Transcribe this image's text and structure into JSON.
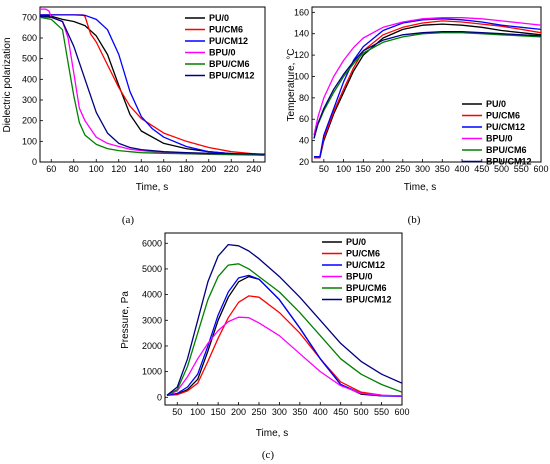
{
  "colors": {
    "PU/0": "#000000",
    "PU/CM6": "#ff0000",
    "PU/CM12": "#0000ff",
    "BPU/0": "#ff00ff",
    "BPU/CM6": "#008000",
    "BPU/CM12": "#000080"
  },
  "chart_data": [
    {
      "type": "line",
      "panel_label": "(a)",
      "xlabel": "Time, s",
      "ylabel": "Dielectric polarization",
      "xlim": [
        50,
        250
      ],
      "ylim": [
        0,
        750
      ],
      "xticks": [
        60,
        80,
        100,
        120,
        140,
        160,
        180,
        200,
        220,
        240
      ],
      "yticks": [
        0,
        100,
        200,
        300,
        400,
        500,
        600,
        700
      ],
      "legend": "top-right",
      "grid": false,
      "series": [
        {
          "name": "PU/0",
          "x": [
            50,
            60,
            70,
            80,
            90,
            100,
            110,
            120,
            130,
            140,
            160,
            180,
            200,
            220,
            250
          ],
          "y": [
            710,
            705,
            690,
            680,
            660,
            610,
            520,
            370,
            230,
            150,
            90,
            65,
            50,
            40,
            33
          ]
        },
        {
          "name": "PU/CM6",
          "x": [
            50,
            60,
            70,
            80,
            88,
            90,
            95,
            100,
            110,
            120,
            130,
            140,
            160,
            180,
            200,
            220,
            250
          ],
          "y": [
            712,
            712,
            712,
            712,
            712,
            705,
            620,
            580,
            470,
            360,
            270,
            210,
            140,
            100,
            70,
            50,
            35
          ]
        },
        {
          "name": "PU/CM12",
          "x": [
            50,
            60,
            70,
            80,
            90,
            100,
            110,
            120,
            130,
            140,
            150,
            160,
            180,
            200,
            220,
            250
          ],
          "y": [
            712,
            712,
            712,
            712,
            710,
            690,
            640,
            520,
            340,
            220,
            160,
            120,
            75,
            50,
            40,
            33
          ]
        },
        {
          "name": "BPU/0",
          "x": [
            50,
            55,
            58,
            60,
            70,
            75,
            80,
            85,
            90,
            100,
            110,
            120,
            130,
            140,
            160,
            180,
            200,
            250
          ],
          "y": [
            740,
            740,
            730,
            700,
            680,
            600,
            430,
            260,
            200,
            120,
            90,
            75,
            62,
            55,
            45,
            40,
            37,
            33
          ]
        },
        {
          "name": "BPU/CM6",
          "x": [
            50,
            60,
            70,
            75,
            80,
            85,
            90,
            100,
            110,
            120,
            130,
            140,
            160,
            180,
            200,
            250
          ],
          "y": [
            700,
            690,
            640,
            480,
            320,
            190,
            130,
            85,
            65,
            55,
            50,
            45,
            42,
            40,
            38,
            35
          ]
        },
        {
          "name": "BPU/CM12",
          "x": [
            50,
            60,
            70,
            80,
            90,
            100,
            110,
            120,
            130,
            140,
            160,
            180,
            200,
            250
          ],
          "y": [
            705,
            700,
            680,
            560,
            400,
            240,
            140,
            90,
            70,
            60,
            50,
            45,
            42,
            38
          ]
        }
      ]
    },
    {
      "type": "line",
      "panel_label": "(b)",
      "xlabel": "Time, s",
      "ylabel": "Temperature, °C",
      "xlim": [
        20,
        600
      ],
      "ylim": [
        20,
        165
      ],
      "xticks": [
        50,
        100,
        150,
        200,
        250,
        300,
        350,
        400,
        450,
        500,
        550,
        600
      ],
      "yticks": [
        20,
        40,
        60,
        80,
        100,
        120,
        140,
        160
      ],
      "legend": "bottom-right",
      "grid": false,
      "series": [
        {
          "name": "PU/0",
          "x": [
            25,
            40,
            50,
            75,
            100,
            125,
            150,
            200,
            250,
            300,
            350,
            400,
            450,
            500,
            550,
            600
          ],
          "y": [
            24,
            24,
            40,
            65,
            85,
            105,
            120,
            136,
            144,
            148,
            149,
            148,
            146,
            143,
            141,
            139
          ]
        },
        {
          "name": "PU/CM6",
          "x": [
            25,
            40,
            50,
            75,
            100,
            125,
            150,
            200,
            250,
            300,
            350,
            400,
            450,
            500,
            550,
            600
          ],
          "y": [
            24,
            24,
            42,
            67,
            88,
            108,
            124,
            139,
            146,
            150,
            152,
            151,
            149,
            147,
            144,
            141
          ]
        },
        {
          "name": "PU/CM12",
          "x": [
            25,
            40,
            50,
            75,
            100,
            125,
            150,
            200,
            250,
            300,
            350,
            400,
            450,
            500,
            550,
            600
          ],
          "y": [
            25,
            25,
            45,
            70,
            95,
            115,
            128,
            143,
            150,
            153,
            154,
            153,
            151,
            148,
            146,
            144
          ]
        },
        {
          "name": "BPU/0",
          "x": [
            25,
            35,
            50,
            75,
            100,
            125,
            150,
            200,
            250,
            300,
            350,
            400,
            450,
            500,
            550,
            600
          ],
          "y": [
            45,
            62,
            80,
            100,
            115,
            127,
            136,
            146,
            151,
            154,
            155,
            155,
            154,
            152,
            150,
            148
          ]
        },
        {
          "name": "BPU/CM6",
          "x": [
            25,
            35,
            50,
            75,
            100,
            125,
            150,
            200,
            250,
            300,
            350,
            400,
            450,
            500,
            550,
            600
          ],
          "y": [
            42,
            55,
            68,
            85,
            100,
            112,
            122,
            132,
            137,
            140,
            141,
            141,
            140,
            139,
            138,
            137
          ]
        },
        {
          "name": "BPU/CM12",
          "x": [
            25,
            35,
            50,
            75,
            100,
            125,
            150,
            200,
            250,
            300,
            350,
            400,
            450,
            500,
            550,
            600
          ],
          "y": [
            42,
            56,
            70,
            88,
            102,
            114,
            124,
            134,
            139,
            141,
            142,
            142,
            141,
            140,
            139,
            138
          ]
        }
      ]
    },
    {
      "type": "line",
      "panel_label": "(c)",
      "xlabel": "Time, s",
      "ylabel": "Pressure, Pa",
      "xlim": [
        20,
        600
      ],
      "ylim": [
        -300,
        6400
      ],
      "xticks": [
        50,
        100,
        150,
        200,
        250,
        300,
        350,
        400,
        450,
        500,
        550,
        600
      ],
      "yticks": [
        0,
        1000,
        2000,
        3000,
        4000,
        5000,
        6000
      ],
      "legend": "top-right",
      "grid": false,
      "series": [
        {
          "name": "PU/0",
          "x": [
            25,
            50,
            75,
            100,
            125,
            150,
            175,
            200,
            225,
            250,
            300,
            350,
            400,
            450,
            500,
            550,
            600
          ],
          "y": [
            80,
            120,
            300,
            700,
            1800,
            3000,
            3900,
            4500,
            4700,
            4600,
            3800,
            2700,
            1500,
            500,
            120,
            60,
            50
          ]
        },
        {
          "name": "PU/CM6",
          "x": [
            25,
            50,
            75,
            100,
            125,
            150,
            175,
            200,
            225,
            250,
            300,
            350,
            400,
            450,
            500,
            550,
            600
          ],
          "y": [
            80,
            100,
            250,
            550,
            1400,
            2300,
            3100,
            3700,
            3950,
            3900,
            3300,
            2500,
            1500,
            600,
            200,
            80,
            50
          ]
        },
        {
          "name": "PU/CM12",
          "x": [
            25,
            50,
            75,
            100,
            125,
            150,
            175,
            200,
            225,
            250,
            300,
            350,
            400,
            450,
            500,
            550,
            600
          ],
          "y": [
            80,
            150,
            400,
            900,
            2000,
            3200,
            4100,
            4650,
            4750,
            4600,
            3800,
            2700,
            1500,
            500,
            150,
            60,
            40
          ]
        },
        {
          "name": "BPU/0",
          "x": [
            25,
            50,
            75,
            100,
            125,
            150,
            175,
            200,
            225,
            250,
            300,
            350,
            400,
            450,
            500,
            550,
            600
          ],
          "y": [
            80,
            250,
            800,
            1500,
            2100,
            2600,
            2950,
            3120,
            3100,
            2900,
            2400,
            1700,
            1000,
            450,
            150,
            80,
            50
          ]
        },
        {
          "name": "BPU/CM6",
          "x": [
            25,
            50,
            75,
            100,
            125,
            150,
            175,
            200,
            225,
            250,
            300,
            350,
            400,
            450,
            500,
            550,
            600
          ],
          "y": [
            80,
            300,
            1200,
            2500,
            3800,
            4700,
            5150,
            5200,
            5000,
            4700,
            4100,
            3300,
            2400,
            1500,
            900,
            500,
            200
          ]
        },
        {
          "name": "BPU/CM12",
          "x": [
            25,
            50,
            75,
            100,
            125,
            150,
            175,
            200,
            225,
            250,
            300,
            350,
            400,
            450,
            500,
            550,
            600
          ],
          "y": [
            80,
            400,
            1500,
            3000,
            4500,
            5500,
            5950,
            5900,
            5700,
            5400,
            4700,
            3900,
            3000,
            2100,
            1400,
            900,
            550
          ]
        }
      ]
    }
  ]
}
